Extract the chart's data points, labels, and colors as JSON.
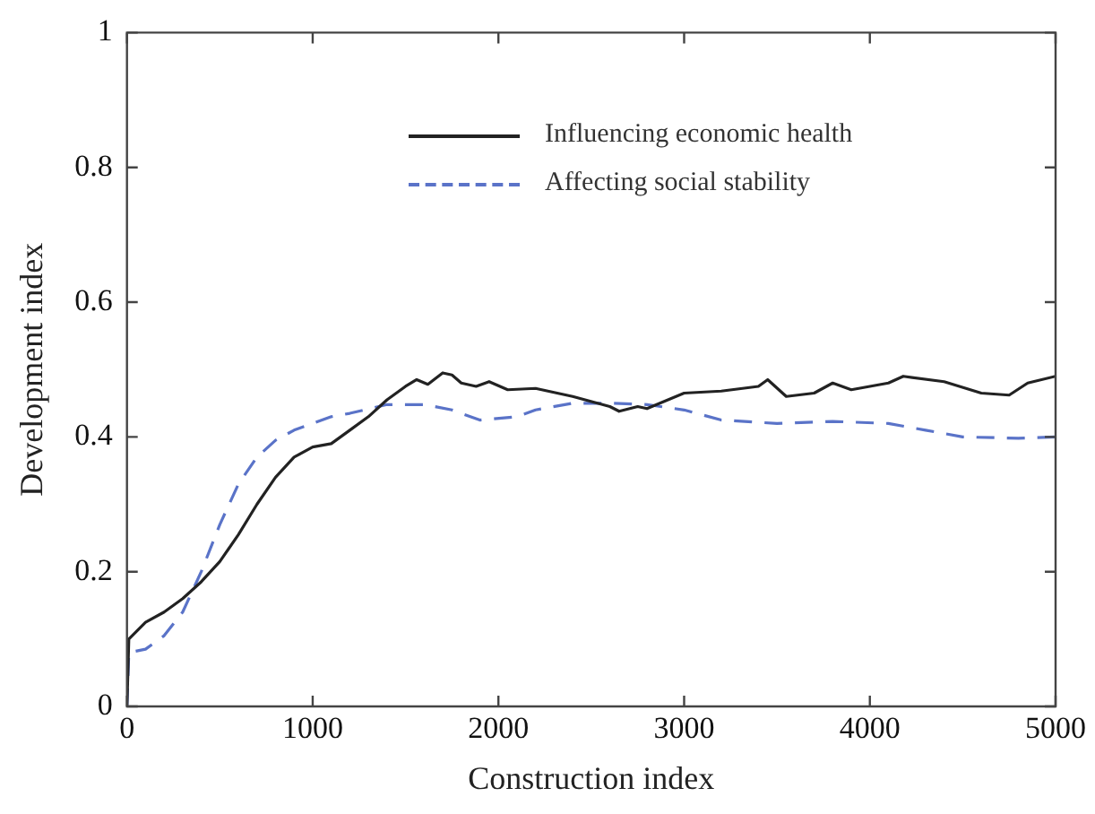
{
  "chart_data": {
    "type": "line",
    "xlabel": "Construction index",
    "ylabel": "Development index",
    "xlim": [
      0,
      5000
    ],
    "ylim": [
      0,
      1
    ],
    "xticks": [
      0,
      1000,
      2000,
      3000,
      4000,
      5000
    ],
    "yticks": [
      0,
      0.2,
      0.4,
      0.6,
      0.8,
      1
    ],
    "legend": "top right",
    "marker": "none",
    "series": [
      {
        "name": "Influencing economic health",
        "color": "#222222",
        "line_style": "solid",
        "x": [
          0,
          10,
          100,
          200,
          300,
          400,
          500,
          600,
          700,
          800,
          900,
          1000,
          1100,
          1200,
          1300,
          1400,
          1500,
          1560,
          1620,
          1700,
          1750,
          1800,
          1880,
          1950,
          2050,
          2200,
          2400,
          2600,
          2650,
          2750,
          2800,
          3000,
          3200,
          3400,
          3450,
          3550,
          3700,
          3800,
          3900,
          4000,
          4100,
          4180,
          4400,
          4600,
          4750,
          4850,
          5000
        ],
        "values": [
          0,
          0.1,
          0.125,
          0.14,
          0.16,
          0.185,
          0.215,
          0.255,
          0.3,
          0.34,
          0.37,
          0.385,
          0.39,
          0.41,
          0.43,
          0.455,
          0.475,
          0.485,
          0.478,
          0.495,
          0.492,
          0.48,
          0.475,
          0.482,
          0.47,
          0.472,
          0.46,
          0.445,
          0.438,
          0.445,
          0.442,
          0.465,
          0.468,
          0.475,
          0.485,
          0.46,
          0.465,
          0.48,
          0.47,
          0.475,
          0.48,
          0.49,
          0.482,
          0.465,
          0.462,
          0.48,
          0.49
        ]
      },
      {
        "name": "Affecting social stability",
        "color": "#5a73c8",
        "line_style": "dashed",
        "x": [
          0,
          10,
          100,
          200,
          300,
          400,
          500,
          600,
          700,
          800,
          900,
          1000,
          1100,
          1200,
          1400,
          1600,
          1750,
          1900,
          2100,
          2200,
          2400,
          2600,
          2800,
          3000,
          3200,
          3500,
          3800,
          4100,
          4300,
          4500,
          4800,
          5000
        ],
        "values": [
          0,
          0.08,
          0.085,
          0.105,
          0.14,
          0.2,
          0.27,
          0.33,
          0.37,
          0.395,
          0.41,
          0.42,
          0.43,
          0.435,
          0.448,
          0.448,
          0.44,
          0.425,
          0.43,
          0.44,
          0.45,
          0.45,
          0.448,
          0.44,
          0.425,
          0.42,
          0.423,
          0.42,
          0.41,
          0.4,
          0.398,
          0.4
        ]
      }
    ]
  }
}
